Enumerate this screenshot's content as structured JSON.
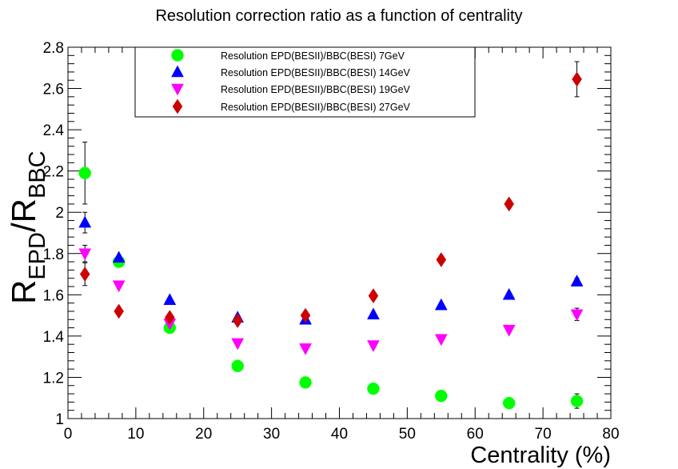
{
  "chart_data": {
    "type": "scatter",
    "title": "Resolution correction ratio as a function of centrality",
    "xlabel": "Centrality (%)",
    "ylabel": {
      "main1": "R",
      "sub1": "EPD",
      "slash": "/",
      "main2": "R",
      "sub2": "BBC"
    },
    "xlim": [
      0,
      80
    ],
    "ylim": [
      1,
      2.8
    ],
    "xticks": [
      "0",
      "10",
      "20",
      "30",
      "40",
      "50",
      "60",
      "70",
      "80"
    ],
    "yticks": [
      "1",
      "1.2",
      "1.4",
      "1.6",
      "1.8",
      "2",
      "2.2",
      "2.4",
      "2.6",
      "2.8"
    ],
    "grid": false,
    "legend_position": "top-left",
    "series": [
      {
        "name": "Resolution EPD(BESII)/BBC(BESI) 7GeV",
        "marker": "circle",
        "color": "#00ff00",
        "x": [
          2.5,
          7.5,
          15,
          25,
          35,
          45,
          55,
          65,
          75
        ],
        "y": [
          2.19,
          1.76,
          1.44,
          1.255,
          1.175,
          1.145,
          1.11,
          1.075,
          1.085
        ],
        "err": [
          0.15,
          0.02,
          0.01,
          0.005,
          0.005,
          0.006,
          0.008,
          0.01,
          0.035
        ]
      },
      {
        "name": "Resolution EPD(BESII)/BBC(BESI) 14GeV",
        "marker": "triangle-up",
        "color": "#0000ff",
        "x": [
          2.5,
          7.5,
          15,
          25,
          35,
          45,
          55,
          65,
          75
        ],
        "y": [
          1.95,
          1.78,
          1.575,
          1.49,
          1.48,
          1.505,
          1.55,
          1.6,
          1.665
        ],
        "err": [
          0.05,
          0.01,
          0.005,
          0.005,
          0.005,
          0.006,
          0.008,
          0.01,
          0.015
        ]
      },
      {
        "name": "Resolution EPD(BESII)/BBC(BESI) 19GeV",
        "marker": "triangle-down",
        "color": "#ff00ff",
        "x": [
          2.5,
          7.5,
          15,
          25,
          35,
          45,
          55,
          65,
          75
        ],
        "y": [
          1.8,
          1.645,
          1.46,
          1.365,
          1.34,
          1.355,
          1.385,
          1.43,
          1.505
        ],
        "err": [
          0.04,
          0.01,
          0.005,
          0.004,
          0.004,
          0.005,
          0.007,
          0.01,
          0.03
        ]
      },
      {
        "name": "Resolution EPD(BESII)/BBC(BESI) 27GeV",
        "marker": "diamond",
        "color": "#cc0000",
        "x": [
          2.5,
          7.5,
          15,
          25,
          35,
          45,
          55,
          65,
          75
        ],
        "y": [
          1.7,
          1.52,
          1.49,
          1.475,
          1.5,
          1.595,
          1.77,
          2.04,
          2.645
        ],
        "err": [
          0.055,
          0.015,
          0.008,
          0.007,
          0.008,
          0.01,
          0.012,
          0.018,
          0.085
        ]
      }
    ]
  }
}
